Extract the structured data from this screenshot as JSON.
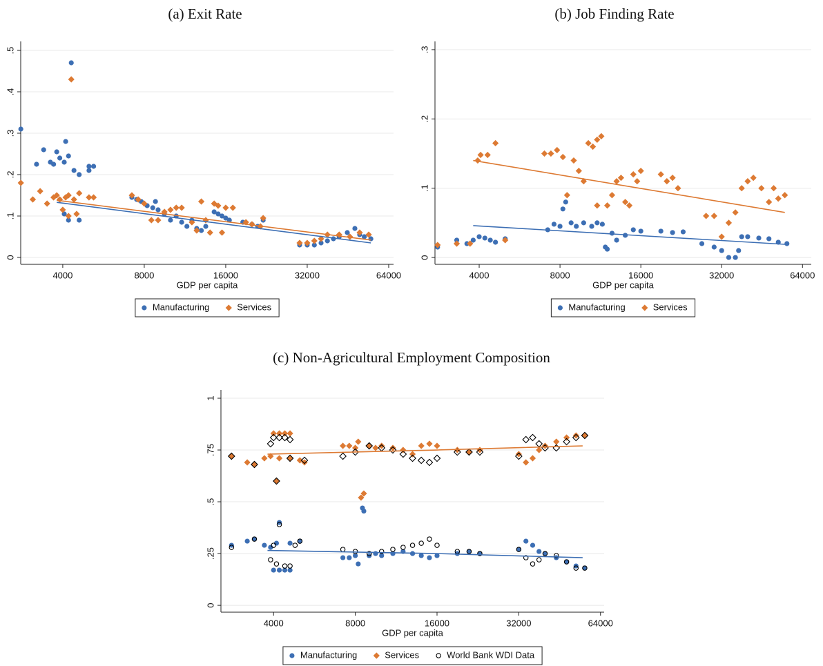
{
  "chart_data": [
    {
      "type": "scatter",
      "title": "(a) Exit Rate",
      "xlabel": "GDP per capita",
      "xscale": "log",
      "grid": true,
      "legend": "bottom",
      "xlim": [
        2797,
        66700
      ],
      "ylim": [
        -0.0167,
        0.5217
      ],
      "xticks": [
        4000,
        8000,
        16000,
        32000,
        64000
      ],
      "yticks": [
        0,
        {
          "value": 0.1,
          "label": ".1"
        },
        {
          "value": 0.2,
          "label": ".2"
        },
        {
          "value": 0.3,
          "label": ".3"
        },
        {
          "value": 0.4,
          "label": ".4"
        },
        {
          "value": 0.5,
          "label": ".5"
        }
      ],
      "series": [
        {
          "name": "Manufacturing",
          "color": "#3d6fb4",
          "marker": "circle",
          "x": [
            2800,
            3200,
            3400,
            3600,
            3700,
            3800,
            3900,
            4050,
            4100,
            4200,
            4300,
            4050,
            4200,
            4400,
            4600,
            4600,
            5000,
            5000,
            5200,
            7200,
            7500,
            7800,
            8200,
            8600,
            8800,
            9000,
            9500,
            10000,
            10500,
            11000,
            11500,
            12000,
            12500,
            13000,
            13500,
            14500,
            15000,
            15500,
            16000,
            16500,
            18500,
            20000,
            21000,
            22000,
            30000,
            32000,
            34000,
            36000,
            38000,
            40000,
            42000,
            45000,
            48000,
            50000,
            52000,
            55000
          ],
          "y": [
            0.31,
            0.225,
            0.26,
            0.23,
            0.225,
            0.255,
            0.24,
            0.23,
            0.28,
            0.245,
            0.47,
            0.105,
            0.09,
            0.21,
            0.2,
            0.09,
            0.21,
            0.22,
            0.22,
            0.145,
            0.14,
            0.135,
            0.125,
            0.12,
            0.135,
            0.115,
            0.105,
            0.09,
            0.1,
            0.085,
            0.075,
            0.09,
            0.07,
            0.065,
            0.075,
            0.11,
            0.105,
            0.1,
            0.095,
            0.09,
            0.085,
            0.08,
            0.075,
            0.09,
            0.03,
            0.03,
            0.03,
            0.035,
            0.04,
            0.045,
            0.05,
            0.06,
            0.07,
            0.055,
            0.05,
            0.045
          ]
        },
        {
          "name": "Services",
          "color": "#dd7a33",
          "marker": "diamond",
          "x": [
            2800,
            3100,
            3300,
            3500,
            3700,
            3800,
            3900,
            4000,
            4100,
            4200,
            4300,
            4200,
            4400,
            4500,
            4600,
            5000,
            5200,
            7200,
            7600,
            8000,
            8500,
            9000,
            9500,
            10000,
            10500,
            11000,
            12000,
            12500,
            13000,
            13500,
            14000,
            14500,
            15000,
            15500,
            16000,
            17000,
            19000,
            20000,
            21500,
            22000,
            30000,
            32000,
            34000,
            36000,
            38000,
            42000,
            46000,
            50000,
            54000
          ],
          "y": [
            0.18,
            0.14,
            0.16,
            0.13,
            0.145,
            0.15,
            0.14,
            0.115,
            0.145,
            0.15,
            0.43,
            0.1,
            0.14,
            0.105,
            0.155,
            0.145,
            0.145,
            0.15,
            0.14,
            0.13,
            0.09,
            0.09,
            0.11,
            0.115,
            0.12,
            0.12,
            0.085,
            0.065,
            0.135,
            0.09,
            0.06,
            0.13,
            0.125,
            0.06,
            0.12,
            0.12,
            0.085,
            0.08,
            0.075,
            0.095,
            0.035,
            0.035,
            0.04,
            0.045,
            0.055,
            0.055,
            0.05,
            0.06,
            0.055
          ]
        }
      ],
      "fits": [
        {
          "color": "#3d6fb4",
          "x": [
            3800,
            55000
          ],
          "y": [
            0.133,
            0.035
          ]
        },
        {
          "color": "#dd7a33",
          "x": [
            3800,
            55000
          ],
          "y": [
            0.138,
            0.042
          ]
        }
      ]
    },
    {
      "type": "scatter",
      "title": "(b) Job Finding Rate",
      "xlabel": "GDP per capita",
      "xscale": "log",
      "grid": true,
      "legend": "bottom",
      "xlim": [
        2738,
        69000
      ],
      "ylim": [
        -0.0099,
        0.3119
      ],
      "xticks": [
        4000,
        8000,
        16000,
        32000,
        64000
      ],
      "yticks": [
        0,
        {
          "value": 0.1,
          "label": ".1"
        },
        {
          "value": 0.2,
          "label": ".2"
        },
        {
          "value": 0.3,
          "label": ".3"
        }
      ],
      "series": [
        {
          "name": "Manufacturing",
          "color": "#3d6fb4",
          "marker": "circle",
          "x": [
            2800,
            3300,
            3600,
            3800,
            4000,
            4200,
            4400,
            4600,
            5000,
            7200,
            7600,
            8000,
            8200,
            8400,
            8800,
            9200,
            9800,
            10500,
            11000,
            11500,
            11800,
            12000,
            12500,
            13000,
            14000,
            15000,
            16000,
            19000,
            21000,
            23000,
            27000,
            30000,
            32000,
            34000,
            36000,
            37000,
            38000,
            40000,
            44000,
            48000,
            52000,
            56000
          ],
          "y": [
            0.015,
            0.025,
            0.02,
            0.025,
            0.03,
            0.028,
            0.025,
            0.022,
            0.027,
            0.04,
            0.048,
            0.045,
            0.07,
            0.08,
            0.05,
            0.045,
            0.05,
            0.045,
            0.05,
            0.048,
            0.015,
            0.012,
            0.035,
            0.025,
            0.032,
            0.04,
            0.038,
            0.038,
            0.036,
            0.037,
            0.02,
            0.015,
            0.01,
            0,
            0,
            0.01,
            0.03,
            0.03,
            0.028,
            0.027,
            0.022,
            0.02
          ]
        },
        {
          "name": "Services",
          "color": "#dd7a33",
          "marker": "diamond",
          "x": [
            2800,
            3300,
            3700,
            3950,
            4050,
            4300,
            4600,
            5000,
            7000,
            7400,
            7800,
            8200,
            8500,
            9000,
            9400,
            9800,
            10200,
            10600,
            11000,
            11400,
            11000,
            12000,
            12500,
            13000,
            13500,
            14000,
            14500,
            15000,
            15500,
            16000,
            19000,
            20000,
            21000,
            22000,
            28000,
            30000,
            32000,
            34000,
            36000,
            38000,
            40000,
            42000,
            45000,
            48000,
            50000,
            52000,
            55000
          ],
          "y": [
            0.018,
            0.02,
            0.02,
            0.14,
            0.148,
            0.148,
            0.165,
            0.025,
            0.15,
            0.15,
            0.155,
            0.145,
            0.09,
            0.14,
            0.125,
            0.11,
            0.165,
            0.16,
            0.17,
            0.175,
            0.075,
            0.075,
            0.09,
            0.11,
            0.115,
            0.08,
            0.075,
            0.12,
            0.11,
            0.125,
            0.12,
            0.11,
            0.115,
            0.1,
            0.06,
            0.06,
            0.03,
            0.05,
            0.065,
            0.1,
            0.11,
            0.115,
            0.1,
            0.08,
            0.1,
            0.085,
            0.09
          ]
        }
      ],
      "fits": [
        {
          "color": "#3d6fb4",
          "x": [
            3800,
            55000
          ],
          "y": [
            0.046,
            0.019
          ]
        },
        {
          "color": "#dd7a33",
          "x": [
            3800,
            55000
          ],
          "y": [
            0.14,
            0.065
          ]
        }
      ]
    },
    {
      "type": "scatter",
      "title": "(c) Non-Agricultural Employment Composition",
      "xlabel": "GDP per capita",
      "xscale": "log",
      "grid": true,
      "legend": "bottom",
      "xlim": [
        2560,
        66000
      ],
      "ylim": [
        -0.033,
        1.04
      ],
      "xticks": [
        4000,
        8000,
        16000,
        32000,
        64000
      ],
      "yticks": [
        0,
        {
          "value": 0.25,
          "label": ".25"
        },
        {
          "value": 0.5,
          "label": ".5"
        },
        {
          "value": 0.75,
          "label": ".75"
        },
        1
      ],
      "series": [
        {
          "name": "Manufacturing",
          "color": "#3d6fb4",
          "marker": "circle",
          "x": [
            2800,
            3200,
            3400,
            3700,
            3900,
            4000,
            4200,
            4400,
            4600,
            4100,
            4200,
            4600,
            5000,
            7200,
            7600,
            8000,
            8200,
            8500,
            8600,
            9000,
            9500,
            10000,
            11000,
            12000,
            13000,
            14000,
            15000,
            16000,
            19000,
            21000,
            23000,
            32000,
            34000,
            36000,
            38000,
            40000,
            44000,
            48000,
            52000,
            56000
          ],
          "y": [
            0.29,
            0.31,
            0.32,
            0.29,
            0.28,
            0.17,
            0.17,
            0.17,
            0.17,
            0.3,
            0.4,
            0.3,
            0.31,
            0.23,
            0.23,
            0.24,
            0.2,
            0.47,
            0.455,
            0.24,
            0.25,
            0.24,
            0.25,
            0.26,
            0.25,
            0.24,
            0.23,
            0.24,
            0.25,
            0.26,
            0.25,
            0.27,
            0.31,
            0.29,
            0.26,
            0.25,
            0.23,
            0.21,
            0.19,
            0.18
          ]
        },
        {
          "name": "Services",
          "color": "#dd7a33",
          "marker": "diamond",
          "x": [
            2800,
            3200,
            3400,
            3700,
            3900,
            4000,
            4200,
            4400,
            4600,
            4100,
            4200,
            4600,
            5000,
            5200,
            7200,
            7600,
            8000,
            8200,
            8400,
            8600,
            9000,
            9500,
            10000,
            11000,
            12000,
            13000,
            14000,
            15000,
            16000,
            19000,
            21000,
            23000,
            32000,
            34000,
            36000,
            38000,
            40000,
            44000,
            48000,
            52000,
            56000
          ],
          "y": [
            0.72,
            0.69,
            0.68,
            0.71,
            0.72,
            0.83,
            0.83,
            0.83,
            0.83,
            0.6,
            0.71,
            0.71,
            0.7,
            0.69,
            0.77,
            0.77,
            0.76,
            0.79,
            0.52,
            0.54,
            0.77,
            0.76,
            0.77,
            0.76,
            0.75,
            0.73,
            0.77,
            0.78,
            0.77,
            0.75,
            0.74,
            0.75,
            0.73,
            0.69,
            0.71,
            0.75,
            0.77,
            0.79,
            0.81,
            0.82,
            0.82
          ]
        },
        {
          "name": "World Bank WDI Data",
          "color": "#000000",
          "marker": "circle-hollow",
          "x": [
            2800,
            3400,
            3900,
            4000,
            4100,
            4200,
            4400,
            4600,
            4800,
            5000,
            7200,
            8000,
            9000,
            10000,
            11000,
            12000,
            13000,
            14000,
            15000,
            16000,
            19000,
            21000,
            23000,
            32000,
            34000,
            36000,
            38000,
            40000,
            44000,
            48000,
            52000,
            56000
          ],
          "y": [
            0.28,
            0.32,
            0.22,
            0.29,
            0.2,
            0.39,
            0.19,
            0.19,
            0.29,
            0.31,
            0.27,
            0.26,
            0.25,
            0.26,
            0.27,
            0.28,
            0.29,
            0.3,
            0.32,
            0.29,
            0.26,
            0.26,
            0.25,
            0.27,
            0.23,
            0.2,
            0.22,
            0.25,
            0.24,
            0.21,
            0.18,
            0.18
          ]
        },
        {
          "color": "#000000",
          "marker": "diamond-hollow",
          "x": [
            2800,
            3400,
            3900,
            4000,
            4200,
            4400,
            4600,
            4100,
            4600,
            5200,
            7200,
            8000,
            9000,
            10000,
            11000,
            12000,
            13000,
            14000,
            15000,
            16000,
            19000,
            21000,
            23000,
            32000,
            34000,
            36000,
            38000,
            40000,
            44000,
            48000,
            52000,
            56000
          ],
          "y": [
            0.72,
            0.68,
            0.78,
            0.81,
            0.81,
            0.81,
            0.8,
            0.6,
            0.71,
            0.7,
            0.72,
            0.74,
            0.77,
            0.76,
            0.75,
            0.73,
            0.71,
            0.7,
            0.69,
            0.71,
            0.74,
            0.74,
            0.74,
            0.72,
            0.8,
            0.81,
            0.78,
            0.76,
            0.76,
            0.79,
            0.81,
            0.82
          ]
        }
      ],
      "fits": [
        {
          "color": "#3d6fb4",
          "x": [
            3800,
            16000,
            55000
          ],
          "y": [
            0.265,
            0.25,
            0.23
          ]
        },
        {
          "color": "#dd7a33",
          "x": [
            3800,
            16000,
            55000
          ],
          "y": [
            0.73,
            0.75,
            0.77
          ]
        }
      ]
    }
  ]
}
